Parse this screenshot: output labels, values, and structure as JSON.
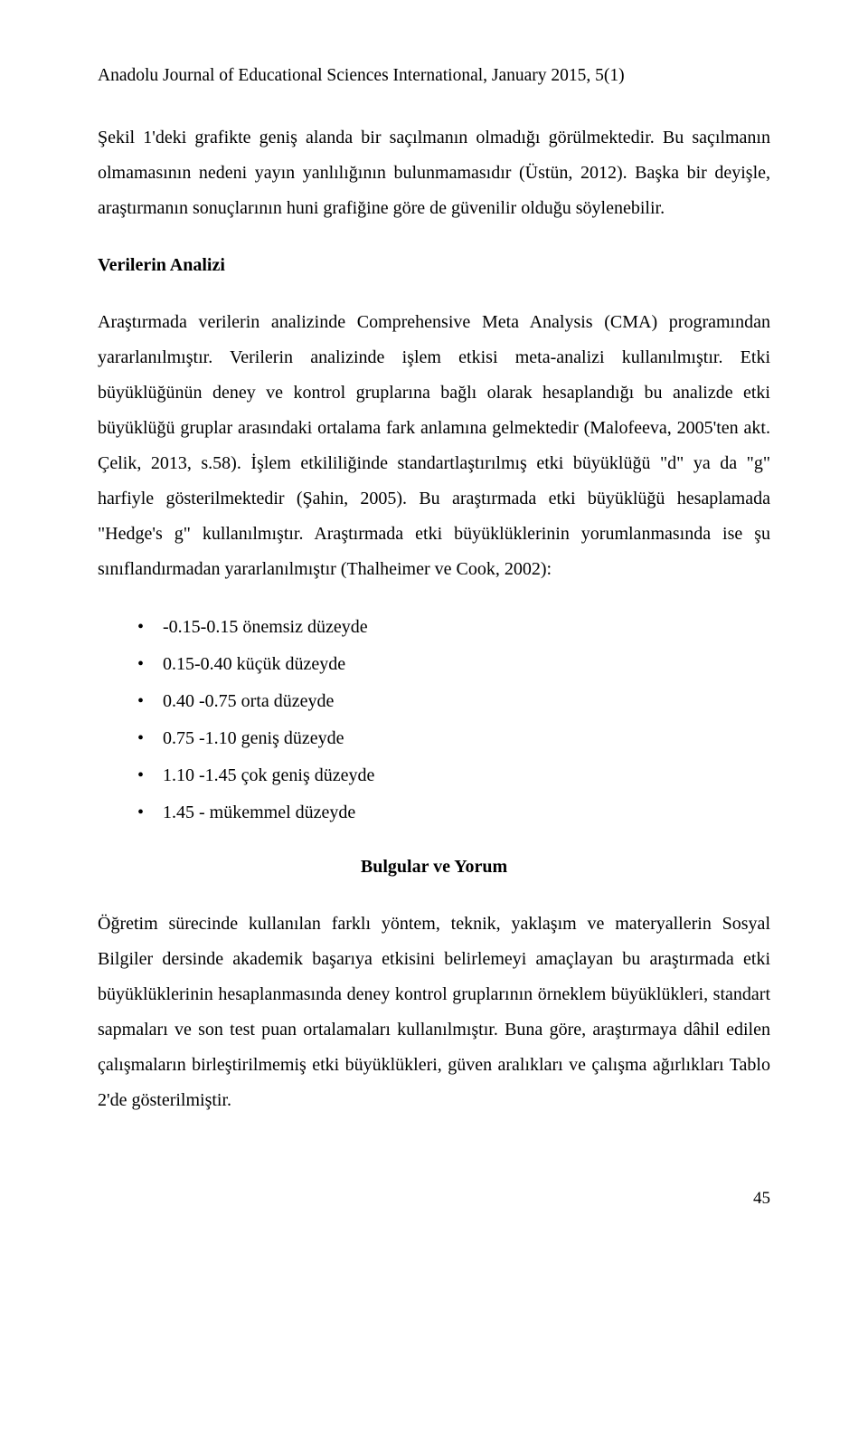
{
  "journalHeader": "Anadolu Journal of Educational Sciences International, January 2015, 5(1)",
  "paragraphs": {
    "p1": "Şekil 1'deki grafikte geniş alanda bir saçılmanın olmadığı görülmektedir. Bu saçılmanın olmamasının nedeni yayın yanlılığının bulunmamasıdır (Üstün, 2012). Başka bir deyişle, araştırmanın sonuçlarının huni grafiğine göre de güvenilir olduğu söylenebilir.",
    "p2": "Araştırmada verilerin analizinde Comprehensive Meta Analysis (CMA) programından yararlanılmıştır. Verilerin analizinde işlem etkisi meta-analizi kullanılmıştır. Etki büyüklüğünün deney ve kontrol gruplarına bağlı olarak hesaplandığı bu analizde etki büyüklüğü gruplar arasındaki ortalama fark anlamına gelmektedir (Malofeeva, 2005'ten akt. Çelik, 2013, s.58). İşlem etkililiğinde standartlaştırılmış etki büyüklüğü \"d\" ya da \"g\" harfiyle gösterilmektedir (Şahin, 2005). Bu araştırmada etki büyüklüğü hesaplamada \"Hedge's g\" kullanılmıştır. Araştırmada etki büyüklüklerinin yorumlanmasında ise şu sınıflandırmadan yararlanılmıştır (Thalheimer ve Cook, 2002):",
    "p3": "Öğretim sürecinde kullanılan farklı yöntem, teknik, yaklaşım ve materyallerin Sosyal Bilgiler dersinde akademik başarıya etkisini belirlemeyi amaçlayan bu araştırmada etki büyüklüklerinin hesaplanmasında deney kontrol gruplarının örneklem büyüklükleri, standart sapmaları ve son test puan ortalamaları kullanılmıştır. Buna göre, araştırmaya dâhil edilen çalışmaların birleştirilmemiş etki büyüklükleri, güven aralıkları ve çalışma ağırlıkları Tablo 2'de gösterilmiştir."
  },
  "headings": {
    "verilerin": "Verilerin Analizi",
    "bulgular": "Bulgular ve Yorum"
  },
  "bullets": [
    "-0.15-0.15 önemsiz düzeyde",
    "0.15-0.40 küçük düzeyde",
    "0.40 -0.75 orta düzeyde",
    "0.75 -1.10 geniş düzeyde",
    "1.10 -1.45 çok geniş düzeyde",
    "1.45 - mükemmel düzeyde"
  ],
  "pageNumber": "45"
}
